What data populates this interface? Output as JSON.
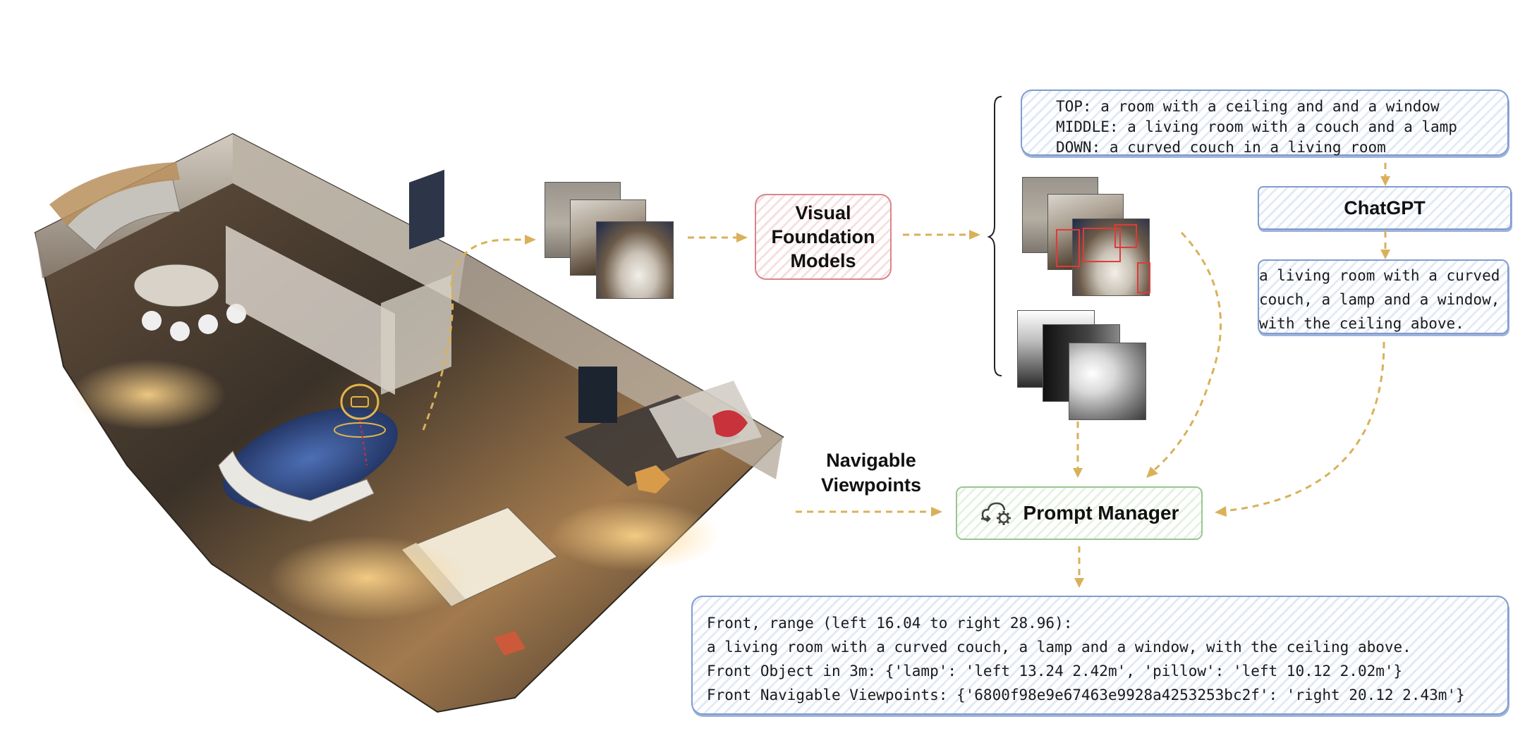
{
  "nodes": {
    "vfm": {
      "label_lines": [
        "Visual",
        "Foundation",
        "Models"
      ]
    },
    "chatgpt": {
      "label": "ChatGPT"
    },
    "prompt_manager": {
      "label": "Prompt Manager"
    },
    "navigable": {
      "label_lines": [
        "Navigable",
        "Viewpoints"
      ]
    }
  },
  "captions": {
    "lines": [
      "TOP: a room with a ceiling and and a window",
      "MIDDLE: a living room with a couch and a lamp",
      "DOWN: a curved couch in a living room"
    ]
  },
  "summary": {
    "lines": [
      "a living room with a curved",
      "couch, a lamp and a window,",
      "with the ceiling above."
    ]
  },
  "output": {
    "lines": [
      "Front, range (left 16.04 to right 28.96):",
      "a living room with a curved couch, a lamp and a window, with the ceiling above.",
      "Front Object in 3m: {'lamp': 'left 13.24 2.42m', 'pillow': 'left 10.12 2.02m'}",
      "Front Navigable Viewpoints: {'6800f98e9e67463e9928a4253253bc2f': 'right 20.12 2.43m'}"
    ]
  },
  "colors": {
    "arrow": "#d9b15a",
    "blue_border": "#7f9ccf",
    "red_border": "#d9868a",
    "green_border": "#98c78f",
    "bbox": "#e03a3a"
  },
  "icons": {
    "prompt_manager": "cloud-gear-icon"
  }
}
